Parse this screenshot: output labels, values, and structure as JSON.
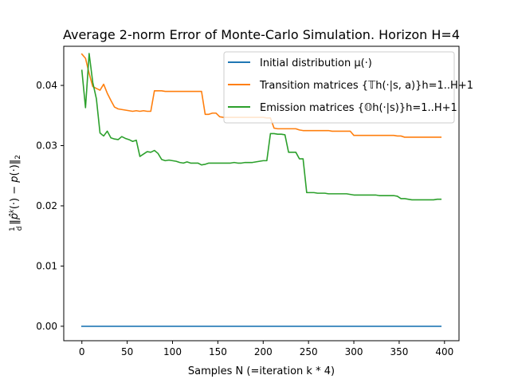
{
  "chart_data": {
    "type": "line",
    "title": "Average 2-norm Error of Monte-Carlo Simulation. Horizon H=4",
    "xlabel": "Samples N (=iteration k * 4)",
    "ylabel": "1/d ||p̂^k(·) − p(·)||₂",
    "xlim": [
      -20,
      416
    ],
    "ylim": [
      -0.0024,
      0.0465
    ],
    "xticks": [
      0,
      50,
      100,
      150,
      200,
      250,
      300,
      350,
      400
    ],
    "yticks": [
      0.0,
      0.01,
      0.02,
      0.03,
      0.04
    ],
    "xtick_labels": [
      "0",
      "50",
      "100",
      "150",
      "200",
      "250",
      "300",
      "350",
      "400"
    ],
    "ytick_labels": [
      "0.00",
      "0.01",
      "0.02",
      "0.03",
      "0.04"
    ],
    "grid": false,
    "legend_position": "top-right",
    "series": [
      {
        "name": "Initial distribution μ(·)",
        "color": "#1f77b4",
        "x": [
          0,
          396
        ],
        "y": [
          0.0,
          0.0
        ]
      },
      {
        "name": "Transition matrices {𝕋h(·|s, a)}h=1..H+1",
        "color": "#ff7f0e",
        "x": [
          0,
          4,
          8,
          12,
          16,
          20,
          24,
          28,
          32,
          36,
          40,
          44,
          48,
          52,
          56,
          60,
          64,
          68,
          72,
          76,
          80,
          84,
          88,
          92,
          96,
          100,
          104,
          108,
          112,
          116,
          120,
          124,
          128,
          132,
          136,
          140,
          144,
          148,
          152,
          156,
          160,
          164,
          168,
          172,
          176,
          180,
          184,
          188,
          192,
          196,
          200,
          204,
          208,
          212,
          216,
          220,
          224,
          228,
          232,
          236,
          240,
          244,
          248,
          252,
          256,
          260,
          264,
          268,
          272,
          276,
          280,
          284,
          288,
          292,
          296,
          300,
          304,
          308,
          312,
          316,
          320,
          324,
          328,
          332,
          336,
          340,
          344,
          348,
          352,
          356,
          360,
          364,
          368,
          372,
          376,
          380,
          384,
          388,
          392,
          396
        ],
        "y": [
          0.0452,
          0.0445,
          0.042,
          0.0398,
          0.0395,
          0.0392,
          0.0402,
          0.0387,
          0.0375,
          0.0364,
          0.0361,
          0.036,
          0.0359,
          0.0358,
          0.0357,
          0.0358,
          0.0357,
          0.0358,
          0.0357,
          0.0357,
          0.0391,
          0.0391,
          0.0391,
          0.039,
          0.039,
          0.039,
          0.039,
          0.039,
          0.039,
          0.039,
          0.039,
          0.039,
          0.039,
          0.039,
          0.0352,
          0.0352,
          0.0354,
          0.0354,
          0.0348,
          0.0347,
          0.0347,
          0.0347,
          0.0347,
          0.0347,
          0.0347,
          0.0347,
          0.0347,
          0.0347,
          0.0347,
          0.0347,
          0.0347,
          0.0346,
          0.0346,
          0.0329,
          0.0328,
          0.0328,
          0.0328,
          0.0328,
          0.0328,
          0.0328,
          0.0326,
          0.0325,
          0.0325,
          0.0325,
          0.0325,
          0.0325,
          0.0325,
          0.0325,
          0.0325,
          0.0324,
          0.0324,
          0.0324,
          0.0324,
          0.0324,
          0.0324,
          0.0317,
          0.0317,
          0.0317,
          0.0317,
          0.0317,
          0.0317,
          0.0317,
          0.0317,
          0.0317,
          0.0317,
          0.0317,
          0.0317,
          0.0316,
          0.0316,
          0.0314,
          0.0314,
          0.0314,
          0.0314,
          0.0314,
          0.0314,
          0.0314,
          0.0314,
          0.0314,
          0.0314,
          0.0314
        ]
      },
      {
        "name": "Emission matrices {𝕆h(·|s)}h=1..H+1",
        "color": "#2ca02c",
        "x": [
          0,
          4,
          8,
          12,
          16,
          20,
          24,
          28,
          32,
          36,
          40,
          44,
          48,
          52,
          56,
          60,
          64,
          68,
          72,
          76,
          80,
          84,
          88,
          92,
          96,
          100,
          104,
          108,
          112,
          116,
          120,
          124,
          128,
          132,
          136,
          140,
          144,
          148,
          152,
          156,
          160,
          164,
          168,
          172,
          176,
          180,
          184,
          188,
          192,
          196,
          200,
          204,
          208,
          212,
          216,
          220,
          224,
          228,
          232,
          236,
          240,
          244,
          248,
          252,
          256,
          260,
          264,
          268,
          272,
          276,
          280,
          284,
          288,
          292,
          296,
          300,
          304,
          308,
          312,
          316,
          320,
          324,
          328,
          332,
          336,
          340,
          344,
          348,
          352,
          356,
          360,
          364,
          368,
          372,
          376,
          380,
          384,
          388,
          392,
          396
        ],
        "y": [
          0.0425,
          0.0363,
          0.0453,
          0.0405,
          0.0378,
          0.0321,
          0.0316,
          0.0324,
          0.0313,
          0.0311,
          0.031,
          0.0315,
          0.0312,
          0.031,
          0.0307,
          0.0309,
          0.0282,
          0.0286,
          0.029,
          0.0289,
          0.0292,
          0.0287,
          0.0277,
          0.0275,
          0.0276,
          0.0275,
          0.0274,
          0.0272,
          0.0271,
          0.0273,
          0.0271,
          0.0271,
          0.0271,
          0.0268,
          0.0269,
          0.0271,
          0.0271,
          0.0271,
          0.0271,
          0.0271,
          0.0271,
          0.0271,
          0.0272,
          0.0271,
          0.0271,
          0.0272,
          0.0272,
          0.0272,
          0.0273,
          0.0274,
          0.0275,
          0.0275,
          0.032,
          0.032,
          0.0319,
          0.0319,
          0.0318,
          0.0289,
          0.0289,
          0.0289,
          0.0278,
          0.0278,
          0.0222,
          0.0222,
          0.0222,
          0.0221,
          0.0221,
          0.0221,
          0.022,
          0.022,
          0.022,
          0.022,
          0.022,
          0.022,
          0.0219,
          0.0218,
          0.0218,
          0.0218,
          0.0218,
          0.0218,
          0.0218,
          0.0218,
          0.0217,
          0.0217,
          0.0217,
          0.0217,
          0.0217,
          0.0216,
          0.0212,
          0.0212,
          0.0211,
          0.021,
          0.021,
          0.021,
          0.021,
          0.021,
          0.021,
          0.021,
          0.0211,
          0.0211
        ]
      }
    ]
  }
}
